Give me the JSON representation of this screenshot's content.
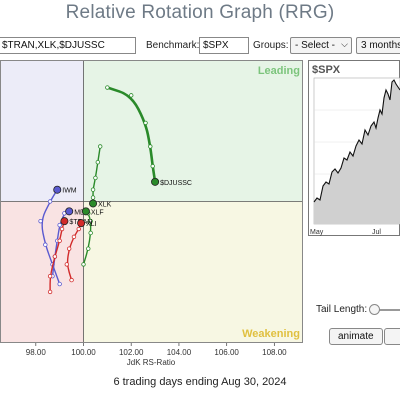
{
  "title": "Relative Rotation Graph (RRG)",
  "symbols_value": "$TRAN,XLK,$DJUSSC",
  "benchmark_label": "Benchmark:",
  "benchmark_value": "$SPX",
  "groups_label": "Groups:",
  "groups_value": "- Select -",
  "period_value": "3 months",
  "caption": "6 trading days ending Aug 30, 2024",
  "tail_length_label": "Tail Length:",
  "animate_label": "animate",
  "spx_panel": {
    "symbol": "$SPX",
    "month_labels": [
      "May",
      "Jul"
    ]
  },
  "colors": {
    "leading": "#e6f4e6",
    "weakening": "#f7f7e3",
    "lagging": "#f9e3e3",
    "improving": "#ececf8"
  },
  "chart_data": {
    "type": "scatter",
    "xlabel": "JdK RS-Ratio",
    "xlim": [
      96.5,
      109.2
    ],
    "ylim": [
      96.4,
      103.6
    ],
    "x_ticks": [
      "98.00",
      "100.00",
      "102.00",
      "104.00",
      "106.00",
      "108.00"
    ],
    "center": [
      100,
      100
    ],
    "quadrants": {
      "leading": "Leading",
      "weakening": "Weakening"
    },
    "series": [
      {
        "name": "$DJUSSC",
        "color": "#2a8a2a",
        "x": [
          101.0,
          102.0,
          102.6,
          102.8,
          102.9,
          103.0
        ],
        "y": [
          102.9,
          102.7,
          102.0,
          101.4,
          100.9,
          100.5
        ]
      },
      {
        "name": "IWM",
        "color": "#5a5ad0",
        "x": [
          99.0,
          98.7,
          98.4,
          98.2,
          98.6,
          98.9
        ],
        "y": [
          97.9,
          98.4,
          98.9,
          99.5,
          100.0,
          100.3
        ]
      },
      {
        "name": "XLK",
        "color": "#2a8a2a",
        "x": [
          100.7,
          100.6,
          100.5,
          100.4,
          100.4,
          100.4
        ],
        "y": [
          101.4,
          101.0,
          100.6,
          100.3,
          100.1,
          99.95
        ]
      },
      {
        "name": "MDY",
        "color": "#5a5ad0",
        "x": [
          98.7,
          98.8,
          98.9,
          99.0,
          99.2,
          99.4
        ],
        "y": [
          98.1,
          98.6,
          99.0,
          99.4,
          99.7,
          99.75
        ]
      },
      {
        "name": "XLF",
        "color": "#2a8a2a",
        "x": [
          100.0,
          100.2,
          100.3,
          100.3,
          100.2,
          100.1
        ],
        "y": [
          98.4,
          98.8,
          99.2,
          99.5,
          99.7,
          99.75
        ]
      },
      {
        "name": "$TRAN",
        "color": "#d22a2a",
        "x": [
          98.6,
          98.6,
          98.8,
          99.0,
          99.1,
          99.2
        ],
        "y": [
          97.7,
          98.1,
          98.6,
          99.0,
          99.3,
          99.5
        ]
      },
      {
        "name": "XLI",
        "color": "#d22a2a",
        "x": [
          99.5,
          99.3,
          99.4,
          99.6,
          99.8,
          99.9
        ],
        "y": [
          98.0,
          98.4,
          98.8,
          99.1,
          99.3,
          99.45
        ]
      }
    ]
  }
}
